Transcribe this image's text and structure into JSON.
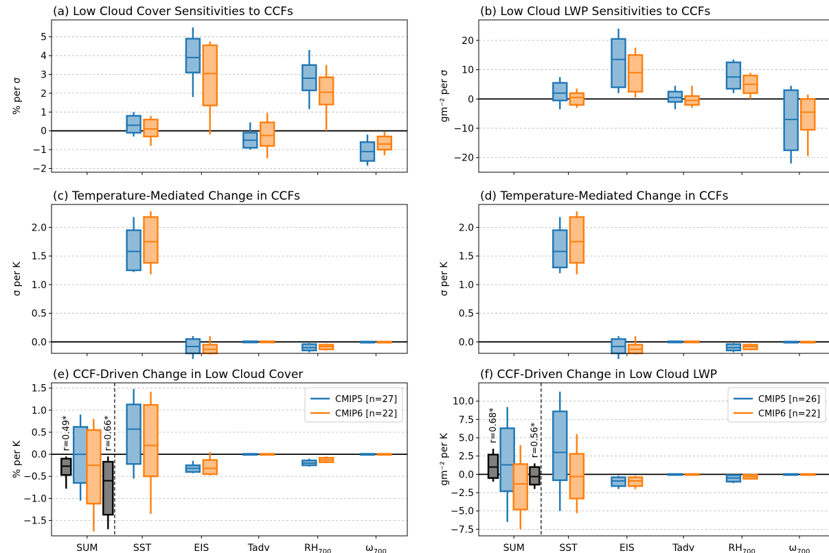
{
  "colors": {
    "cmip5": "#1f77b4",
    "cmip5_fill": "#8fbbd9",
    "cmip6": "#ff7f0e",
    "cmip6_fill": "#ffbf86",
    "sum_fill": "#7f7f7f",
    "sum_edge": "#000000",
    "grid": "#b0b0b0"
  },
  "categories": [
    "SUM",
    "SST",
    "EIS",
    "Tadv",
    "RH700",
    "ω700"
  ],
  "category_labels": [
    {
      "base": "SUM",
      "sub": ""
    },
    {
      "base": "SST",
      "sub": ""
    },
    {
      "base": "EIS",
      "sub": ""
    },
    {
      "base": "Tadv",
      "sub": ""
    },
    {
      "base": "RH",
      "sub": "700"
    },
    {
      "base": "ω",
      "sub": "700"
    }
  ],
  "chart_data": [
    {
      "id": "a",
      "type": "box",
      "title": "(a) Low Cloud Cover Sensitivities to CCFs",
      "ylabel": "% per σ",
      "ylim": [
        -2.2,
        5.9
      ],
      "yticks": [
        -2,
        -1,
        0,
        1,
        2,
        3,
        4,
        5
      ],
      "ytick_labels": [
        "−2",
        "−1",
        "0",
        "1",
        "2",
        "3",
        "4",
        "5"
      ],
      "show_xlabels": false,
      "divider": false,
      "legend": null,
      "boxes": [
        {
          "cat": 1,
          "series": "CMIP5",
          "whisker_low": -0.3,
          "q1": -0.1,
          "median": 0.3,
          "q3": 0.8,
          "whisker_high": 1.0
        },
        {
          "cat": 1,
          "series": "CMIP6",
          "whisker_low": -0.8,
          "q1": -0.3,
          "median": 0.1,
          "q3": 0.6,
          "whisker_high": 0.8
        },
        {
          "cat": 2,
          "series": "CMIP5",
          "whisker_low": 1.8,
          "q1": 3.1,
          "median": 3.9,
          "q3": 4.9,
          "whisker_high": 5.5
        },
        {
          "cat": 2,
          "series": "CMIP6",
          "whisker_low": -0.2,
          "q1": 1.35,
          "median": 3.05,
          "q3": 4.55,
          "whisker_high": 4.75
        },
        {
          "cat": 3,
          "series": "CMIP5",
          "whisker_low": -1.0,
          "q1": -0.9,
          "median": -0.5,
          "q3": -0.1,
          "whisker_high": 0.45
        },
        {
          "cat": 3,
          "series": "CMIP6",
          "whisker_low": -1.45,
          "q1": -0.8,
          "median": -0.25,
          "q3": 0.45,
          "whisker_high": 0.95
        },
        {
          "cat": 4,
          "series": "CMIP5",
          "whisker_low": 1.15,
          "q1": 2.15,
          "median": 2.8,
          "q3": 3.5,
          "whisker_high": 4.3
        },
        {
          "cat": 4,
          "series": "CMIP6",
          "whisker_low": 0.0,
          "q1": 1.4,
          "median": 2.05,
          "q3": 2.85,
          "whisker_high": 3.5
        },
        {
          "cat": 5,
          "series": "CMIP5",
          "whisker_low": -1.85,
          "q1": -1.6,
          "median": -1.1,
          "q3": -0.6,
          "whisker_high": -0.2
        },
        {
          "cat": 5,
          "series": "CMIP6",
          "whisker_low": -1.3,
          "q1": -1.0,
          "median": -0.7,
          "q3": -0.3,
          "whisker_high": -0.05
        }
      ]
    },
    {
      "id": "b",
      "type": "box",
      "title": "(b) Low Cloud LWP Sensitivities to CCFs",
      "ylabel": "gm⁻² per σ",
      "ylim": [
        -25,
        27
      ],
      "yticks": [
        -20,
        -10,
        0,
        10,
        20
      ],
      "ytick_labels": [
        "−20",
        "−10",
        "0",
        "10",
        "20"
      ],
      "show_xlabels": false,
      "divider": false,
      "legend": null,
      "boxes": [
        {
          "cat": 1,
          "series": "CMIP5",
          "whisker_low": -3.5,
          "q1": -0.5,
          "median": 2.0,
          "q3": 5.5,
          "whisker_high": 7.5
        },
        {
          "cat": 1,
          "series": "CMIP6",
          "whisker_low": -3.0,
          "q1": -2.0,
          "median": 0.5,
          "q3": 2.0,
          "whisker_high": 3.5
        },
        {
          "cat": 2,
          "series": "CMIP5",
          "whisker_low": 2.0,
          "q1": 4.0,
          "median": 13.5,
          "q3": 20.5,
          "whisker_high": 24.0
        },
        {
          "cat": 2,
          "series": "CMIP6",
          "whisker_low": 0.5,
          "q1": 2.5,
          "median": 9.0,
          "q3": 15.0,
          "whisker_high": 17.5
        },
        {
          "cat": 3,
          "series": "CMIP5",
          "whisker_low": -3.5,
          "q1": -1.0,
          "median": 0.5,
          "q3": 2.5,
          "whisker_high": 4.5
        },
        {
          "cat": 3,
          "series": "CMIP6",
          "whisker_low": -3.0,
          "q1": -2.0,
          "median": -0.5,
          "q3": 1.0,
          "whisker_high": 4.5
        },
        {
          "cat": 4,
          "series": "CMIP5",
          "whisker_low": 2.0,
          "q1": 3.5,
          "median": 7.5,
          "q3": 12.5,
          "whisker_high": 13.5
        },
        {
          "cat": 4,
          "series": "CMIP6",
          "whisker_low": 0.0,
          "q1": 2.0,
          "median": 5.0,
          "q3": 8.0,
          "whisker_high": 9.0
        },
        {
          "cat": 5,
          "series": "CMIP5",
          "whisker_low": -22.0,
          "q1": -17.5,
          "median": -7.0,
          "q3": 3.0,
          "whisker_high": 4.5
        },
        {
          "cat": 5,
          "series": "CMIP6",
          "whisker_low": -19.5,
          "q1": -10.5,
          "median": -4.5,
          "q3": 0.0,
          "whisker_high": 1.5
        }
      ]
    },
    {
      "id": "c",
      "type": "box",
      "title": "(c) Temperature-Mediated Change in CCFs",
      "ylabel": "σ per K",
      "ylim": [
        -0.2,
        2.4
      ],
      "yticks": [
        0.0,
        0.5,
        1.0,
        1.5,
        2.0
      ],
      "ytick_labels": [
        "0.0",
        "0.5",
        "1.0",
        "1.5",
        "2.0"
      ],
      "show_xlabels": false,
      "divider": false,
      "legend": null,
      "boxes": [
        {
          "cat": 1,
          "series": "CMIP5",
          "whisker_low": 1.22,
          "q1": 1.25,
          "median": 1.58,
          "q3": 1.95,
          "whisker_high": 2.18
        },
        {
          "cat": 1,
          "series": "CMIP6",
          "whisker_low": 1.18,
          "q1": 1.38,
          "median": 1.75,
          "q3": 2.18,
          "whisker_high": 2.28
        },
        {
          "cat": 2,
          "series": "CMIP5",
          "whisker_low": -0.3,
          "q1": -0.2,
          "median": -0.08,
          "q3": 0.05,
          "whisker_high": 0.1
        },
        {
          "cat": 2,
          "series": "CMIP6",
          "whisker_low": -0.22,
          "q1": -0.2,
          "median": -0.13,
          "q3": -0.05,
          "whisker_high": 0.1
        },
        {
          "cat": 3,
          "series": "CMIP5",
          "whisker_low": -0.02,
          "q1": -0.01,
          "median": 0.0,
          "q3": 0.01,
          "whisker_high": 0.02
        },
        {
          "cat": 3,
          "series": "CMIP6",
          "whisker_low": -0.02,
          "q1": -0.01,
          "median": 0.0,
          "q3": 0.01,
          "whisker_high": 0.02
        },
        {
          "cat": 4,
          "series": "CMIP5",
          "whisker_low": -0.18,
          "q1": -0.15,
          "median": -0.1,
          "q3": -0.04,
          "whisker_high": -0.02
        },
        {
          "cat": 4,
          "series": "CMIP6",
          "whisker_low": -0.15,
          "q1": -0.13,
          "median": -0.08,
          "q3": -0.05,
          "whisker_high": -0.03
        },
        {
          "cat": 5,
          "series": "CMIP5",
          "whisker_low": -0.01,
          "q1": -0.005,
          "median": 0.0,
          "q3": 0.005,
          "whisker_high": 0.01
        },
        {
          "cat": 5,
          "series": "CMIP6",
          "whisker_low": -0.01,
          "q1": -0.005,
          "median": 0.0,
          "q3": 0.005,
          "whisker_high": 0.01
        }
      ]
    },
    {
      "id": "d",
      "type": "box",
      "title": "(d) Temperature-Mediated Change in CCFs",
      "ylabel": "σ per K",
      "ylim": [
        -0.2,
        2.4
      ],
      "yticks": [
        0.0,
        0.5,
        1.0,
        1.5,
        2.0
      ],
      "ytick_labels": [
        "0.0",
        "0.5",
        "1.0",
        "1.5",
        "2.0"
      ],
      "show_xlabels": false,
      "divider": false,
      "legend": null,
      "boxes": [
        {
          "cat": 1,
          "series": "CMIP5",
          "whisker_low": 1.2,
          "q1": 1.3,
          "median": 1.58,
          "q3": 1.95,
          "whisker_high": 2.18
        },
        {
          "cat": 1,
          "series": "CMIP6",
          "whisker_low": 1.18,
          "q1": 1.38,
          "median": 1.75,
          "q3": 2.18,
          "whisker_high": 2.28
        },
        {
          "cat": 2,
          "series": "CMIP5",
          "whisker_low": -0.3,
          "q1": -0.2,
          "median": -0.08,
          "q3": 0.05,
          "whisker_high": 0.1
        },
        {
          "cat": 2,
          "series": "CMIP6",
          "whisker_low": -0.22,
          "q1": -0.2,
          "median": -0.13,
          "q3": -0.05,
          "whisker_high": 0.1
        },
        {
          "cat": 3,
          "series": "CMIP5",
          "whisker_low": -0.02,
          "q1": -0.01,
          "median": 0.0,
          "q3": 0.01,
          "whisker_high": 0.02
        },
        {
          "cat": 3,
          "series": "CMIP6",
          "whisker_low": -0.02,
          "q1": -0.01,
          "median": 0.0,
          "q3": 0.01,
          "whisker_high": 0.02
        },
        {
          "cat": 4,
          "series": "CMIP5",
          "whisker_low": -0.18,
          "q1": -0.15,
          "median": -0.1,
          "q3": -0.04,
          "whisker_high": -0.02
        },
        {
          "cat": 4,
          "series": "CMIP6",
          "whisker_low": -0.15,
          "q1": -0.13,
          "median": -0.08,
          "q3": -0.05,
          "whisker_high": -0.03
        },
        {
          "cat": 5,
          "series": "CMIP5",
          "whisker_low": -0.01,
          "q1": -0.005,
          "median": 0.0,
          "q3": 0.005,
          "whisker_high": 0.01
        },
        {
          "cat": 5,
          "series": "CMIP6",
          "whisker_low": -0.01,
          "q1": -0.005,
          "median": 0.0,
          "q3": 0.005,
          "whisker_high": 0.01
        }
      ]
    },
    {
      "id": "e",
      "type": "box",
      "title": "(e) CCF-Driven Change in Low Cloud Cover",
      "ylabel": "% per K",
      "ylim": [
        -1.85,
        1.62
      ],
      "yticks": [
        -1.5,
        -1.0,
        -0.5,
        0.0,
        0.5,
        1.0,
        1.5
      ],
      "ytick_labels": [
        "−1.5",
        "−1.0",
        "−0.5",
        "0.0",
        "0.5",
        "1.0",
        "1.5"
      ],
      "show_xlabels": true,
      "divider": true,
      "legend": {
        "position": "top-right",
        "entries": [
          {
            "series": "CMIP5",
            "label": "CMIP5 [n=27]"
          },
          {
            "series": "CMIP6",
            "label": "CMIP6 [n=22]"
          }
        ]
      },
      "boxes": [
        {
          "cat": 0,
          "series": "SUM5",
          "offset": -0.38,
          "whisker_low": -0.78,
          "q1": -0.47,
          "median": -0.27,
          "q3": -0.1,
          "whisker_high": -0.05,
          "annotation": "r=0.49*"
        },
        {
          "cat": 0,
          "series": "CMIP5",
          "offset": -0.12,
          "whisker_low": -1.05,
          "q1": -0.65,
          "median": 0.0,
          "q3": 0.62,
          "whisker_high": 0.9
        },
        {
          "cat": 0,
          "series": "CMIP6",
          "offset": 0.12,
          "whisker_low": -1.75,
          "q1": -1.12,
          "median": -0.25,
          "q3": 0.55,
          "whisker_high": 0.8
        },
        {
          "cat": 0,
          "series": "SUM6",
          "offset": 0.38,
          "whisker_low": -1.7,
          "q1": -1.37,
          "median": -0.6,
          "q3": -0.17,
          "whisker_high": -0.05,
          "annotation": "r=0.66*"
        },
        {
          "cat": 1,
          "series": "CMIP5",
          "whisker_low": -0.55,
          "q1": -0.22,
          "median": 0.57,
          "q3": 1.13,
          "whisker_high": 1.48
        },
        {
          "cat": 1,
          "series": "CMIP6",
          "whisker_low": -1.35,
          "q1": -0.5,
          "median": 0.2,
          "q3": 1.12,
          "whisker_high": 1.42
        },
        {
          "cat": 2,
          "series": "CMIP5",
          "whisker_low": -0.43,
          "q1": -0.4,
          "median": -0.32,
          "q3": -0.25,
          "whisker_high": -0.15
        },
        {
          "cat": 2,
          "series": "CMIP6",
          "whisker_low": -0.48,
          "q1": -0.45,
          "median": -0.32,
          "q3": -0.13,
          "whisker_high": 0.05
        },
        {
          "cat": 3,
          "series": "CMIP5",
          "whisker_low": -0.01,
          "q1": -0.01,
          "median": 0.0,
          "q3": 0.01,
          "whisker_high": 0.01
        },
        {
          "cat": 3,
          "series": "CMIP6",
          "whisker_low": -0.01,
          "q1": -0.01,
          "median": 0.0,
          "q3": 0.01,
          "whisker_high": 0.01
        },
        {
          "cat": 4,
          "series": "CMIP5",
          "whisker_low": -0.28,
          "q1": -0.25,
          "median": -0.2,
          "q3": -0.14,
          "whisker_high": -0.1
        },
        {
          "cat": 4,
          "series": "CMIP6",
          "whisker_low": -0.2,
          "q1": -0.18,
          "median": -0.13,
          "q3": -0.08,
          "whisker_high": -0.05
        },
        {
          "cat": 5,
          "series": "CMIP5",
          "whisker_low": -0.01,
          "q1": -0.01,
          "median": 0.0,
          "q3": 0.01,
          "whisker_high": 0.01
        },
        {
          "cat": 5,
          "series": "CMIP6",
          "whisker_low": -0.01,
          "q1": -0.01,
          "median": 0.0,
          "q3": 0.01,
          "whisker_high": 0.01
        }
      ]
    },
    {
      "id": "f",
      "type": "box",
      "title": "(f) CCF-Driven Change in Low Cloud LWP",
      "ylabel": "gm⁻² per K",
      "ylim": [
        -8.4,
        12.5
      ],
      "yticks": [
        -7.5,
        -5.0,
        -2.5,
        0.0,
        2.5,
        5.0,
        7.5,
        10.0
      ],
      "ytick_labels": [
        "−7.5",
        "−5.0",
        "−2.5",
        "0.0",
        "2.5",
        "5.0",
        "7.5",
        "10.0"
      ],
      "show_xlabels": true,
      "divider": true,
      "legend": {
        "position": "top-right",
        "entries": [
          {
            "series": "CMIP5",
            "label": "CMIP5 [n=26]"
          },
          {
            "series": "CMIP6",
            "label": "CMIP6 [n=22]"
          }
        ]
      },
      "boxes": [
        {
          "cat": 0,
          "series": "SUM5",
          "offset": -0.38,
          "whisker_low": -1.0,
          "q1": -0.5,
          "median": 1.0,
          "q3": 2.7,
          "whisker_high": 3.5,
          "annotation": "r=0.68*"
        },
        {
          "cat": 0,
          "series": "CMIP5",
          "offset": -0.12,
          "whisker_low": -6.5,
          "q1": -2.3,
          "median": 1.3,
          "q3": 6.3,
          "whisker_high": 9.2
        },
        {
          "cat": 0,
          "series": "CMIP6",
          "offset": 0.12,
          "whisker_low": -7.5,
          "q1": -4.8,
          "median": -1.3,
          "q3": 1.4,
          "whisker_high": 4.0
        },
        {
          "cat": 0,
          "series": "SUM6",
          "offset": 0.38,
          "whisker_low": -2.0,
          "q1": -1.4,
          "median": -0.3,
          "q3": 1.0,
          "whisker_high": 1.5,
          "annotation": "r=0.56*"
        },
        {
          "cat": 1,
          "series": "CMIP5",
          "whisker_low": -5.0,
          "q1": -0.8,
          "median": 3.0,
          "q3": 8.6,
          "whisker_high": 11.3
        },
        {
          "cat": 1,
          "series": "CMIP6",
          "whisker_low": -5.3,
          "q1": -3.3,
          "median": -0.3,
          "q3": 2.8,
          "whisker_high": 5.5
        },
        {
          "cat": 2,
          "series": "CMIP5",
          "whisker_low": -2.0,
          "q1": -1.6,
          "median": -0.9,
          "q3": -0.4,
          "whisker_high": -0.2
        },
        {
          "cat": 2,
          "series": "CMIP6",
          "whisker_low": -2.0,
          "q1": -1.6,
          "median": -0.9,
          "q3": -0.4,
          "whisker_high": -0.2
        },
        {
          "cat": 3,
          "series": "CMIP5",
          "whisker_low": -0.05,
          "q1": -0.05,
          "median": 0.0,
          "q3": 0.05,
          "whisker_high": 0.05
        },
        {
          "cat": 3,
          "series": "CMIP6",
          "whisker_low": -0.05,
          "q1": -0.05,
          "median": 0.0,
          "q3": 0.05,
          "whisker_high": 0.05
        },
        {
          "cat": 4,
          "series": "CMIP5",
          "whisker_low": -1.2,
          "q1": -1.0,
          "median": -0.5,
          "q3": -0.1,
          "whisker_high": 0.0
        },
        {
          "cat": 4,
          "series": "CMIP6",
          "whisker_low": -0.7,
          "q1": -0.6,
          "median": -0.3,
          "q3": -0.05,
          "whisker_high": 0.0
        },
        {
          "cat": 5,
          "series": "CMIP5",
          "whisker_low": -0.05,
          "q1": -0.05,
          "median": 0.0,
          "q3": 0.05,
          "whisker_high": 0.05
        },
        {
          "cat": 5,
          "series": "CMIP6",
          "whisker_low": -0.05,
          "q1": -0.05,
          "median": 0.0,
          "q3": 0.05,
          "whisker_high": 0.05
        }
      ]
    }
  ]
}
